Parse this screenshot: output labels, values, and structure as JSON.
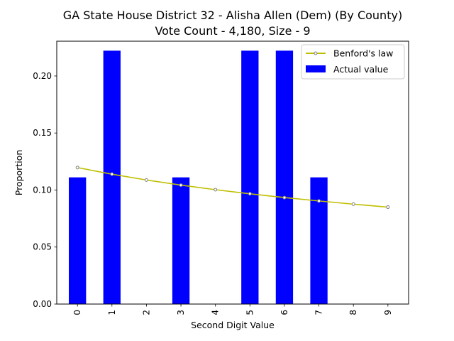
{
  "chart_data": {
    "type": "bar",
    "title": "GA State House District 32 - Alisha Allen (Dem) (By County)",
    "subtitle": "Vote Count - 4,180, Size - 9",
    "xlabel": "Second Digit Value",
    "ylabel": "Proportion",
    "categories": [
      "0",
      "1",
      "2",
      "3",
      "4",
      "5",
      "6",
      "7",
      "8",
      "9"
    ],
    "series": [
      {
        "name": "Actual value",
        "type": "bar",
        "color": "#0000ff",
        "values": [
          0.1111,
          0.2222,
          0.0,
          0.1111,
          0.0,
          0.2222,
          0.2222,
          0.1111,
          0.0,
          0.0
        ]
      },
      {
        "name": "Benford's law",
        "type": "line",
        "color": "#bfbf00",
        "marker_color": "#808080",
        "values": [
          0.1197,
          0.1139,
          0.1088,
          0.1043,
          0.1003,
          0.0967,
          0.0934,
          0.0904,
          0.0876,
          0.085
        ]
      }
    ],
    "ylim": [
      0,
      0.2305
    ],
    "yticks": [
      0.0,
      0.05,
      0.1,
      0.15,
      0.2
    ],
    "ytick_labels": [
      "0.00",
      "0.05",
      "0.10",
      "0.15",
      "0.20"
    ],
    "grid": false,
    "legend": "top-right"
  }
}
